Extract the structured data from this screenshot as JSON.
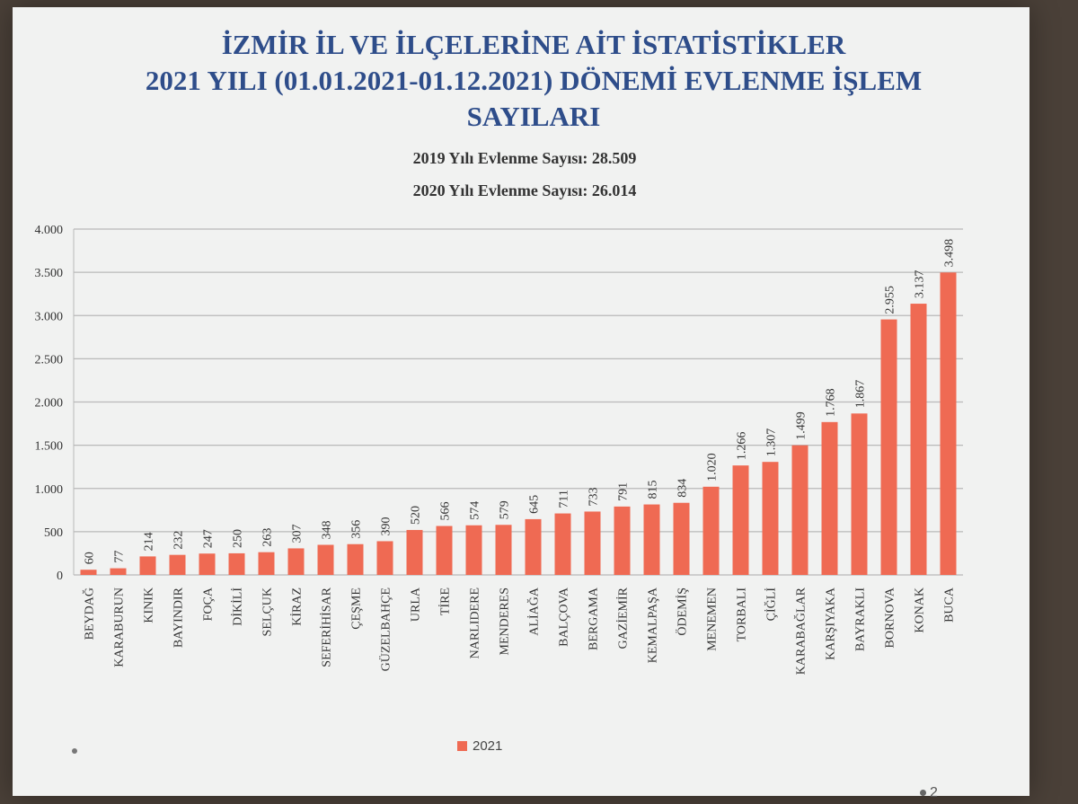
{
  "slide": {
    "title_line1": "İZMİR İL VE İLÇELERİNE AİT İSTATİSTİKLER",
    "title_line2": "2021 YILI (01.01.2021-01.12.2021) DÖNEMİ EVLENME İŞLEM",
    "title_line3": "SAYILARI",
    "subtitle1": "2019 Yılı Evlenme Sayısı: 28.509",
    "subtitle2": "2020 Yılı Evlenme Sayısı: 26.014",
    "page_number": "2"
  },
  "chart_data": {
    "type": "bar",
    "categories": [
      "BEYDAĞ",
      "KARABURUN",
      "KINIK",
      "BAYINDIR",
      "FOÇA",
      "DİKİLİ",
      "SELÇUK",
      "KİRAZ",
      "SEFERİHİSAR",
      "ÇEŞME",
      "GÜZELBAHÇE",
      "URLA",
      "TİRE",
      "NARLIDERE",
      "MENDERES",
      "ALİAĞA",
      "BALÇOVA",
      "BERGAMA",
      "GAZİEMİR",
      "KEMALPAŞA",
      "ÖDEMİŞ",
      "MENEMEN",
      "TORBALI",
      "ÇİĞLİ",
      "KARABAĞLAR",
      "KARŞIYAKA",
      "BAYRAKLI",
      "BORNOVA",
      "KONAK",
      "BUCA"
    ],
    "series": [
      {
        "name": "2021",
        "values": [
          60,
          77,
          214,
          232,
          247,
          250,
          263,
          307,
          348,
          356,
          390,
          520,
          566,
          574,
          579,
          645,
          711,
          733,
          791,
          815,
          834,
          1020,
          1266,
          1307,
          1499,
          1768,
          1867,
          2955,
          3137,
          3498
        ],
        "labels": [
          "60",
          "77",
          "214",
          "232",
          "247",
          "250",
          "263",
          "307",
          "348",
          "356",
          "390",
          "520",
          "566",
          "574",
          "579",
          "645",
          "711",
          "733",
          "791",
          "815",
          "834",
          "1.020",
          "1.266",
          "1.307",
          "1.499",
          "1.768",
          "1.867",
          "2.955",
          "3.137",
          "3.498"
        ]
      }
    ],
    "ylim": [
      0,
      4000
    ],
    "yticks": [
      0,
      500,
      1000,
      1500,
      2000,
      2500,
      3000,
      3500,
      4000
    ],
    "ytick_labels": [
      "0",
      "500",
      "1.000",
      "1.500",
      "2.000",
      "2.500",
      "3.000",
      "3.500",
      "4.000"
    ],
    "grid": true,
    "legend_position": "bottom",
    "bar_color": "#ef6a53"
  }
}
